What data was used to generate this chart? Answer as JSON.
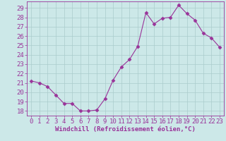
{
  "x": [
    0,
    1,
    2,
    3,
    4,
    5,
    6,
    7,
    8,
    9,
    10,
    11,
    12,
    13,
    14,
    15,
    16,
    17,
    18,
    19,
    20,
    21,
    22,
    23
  ],
  "y": [
    21.2,
    21.0,
    20.6,
    19.7,
    18.8,
    18.8,
    18.0,
    18.0,
    18.1,
    19.3,
    21.3,
    22.7,
    23.5,
    24.9,
    28.5,
    27.3,
    27.9,
    28.0,
    29.3,
    28.4,
    27.7,
    26.3,
    25.8,
    24.8
  ],
  "line_color": "#993399",
  "marker": "D",
  "marker_size": 2.5,
  "bg_color": "#cce8e8",
  "grid_color": "#aacccc",
  "axis_color": "#993399",
  "tick_color": "#993399",
  "xlabel": "Windchill (Refroidissement éolien,°C)",
  "ylabel": "",
  "title": "",
  "ylim": [
    17.5,
    29.7
  ],
  "xlim": [
    -0.5,
    23.5
  ],
  "yticks": [
    18,
    19,
    20,
    21,
    22,
    23,
    24,
    25,
    26,
    27,
    28,
    29
  ],
  "xticks": [
    0,
    1,
    2,
    3,
    4,
    5,
    6,
    7,
    8,
    9,
    10,
    11,
    12,
    13,
    14,
    15,
    16,
    17,
    18,
    19,
    20,
    21,
    22,
    23
  ],
  "font_size": 6.5,
  "label_font_size": 6.5
}
